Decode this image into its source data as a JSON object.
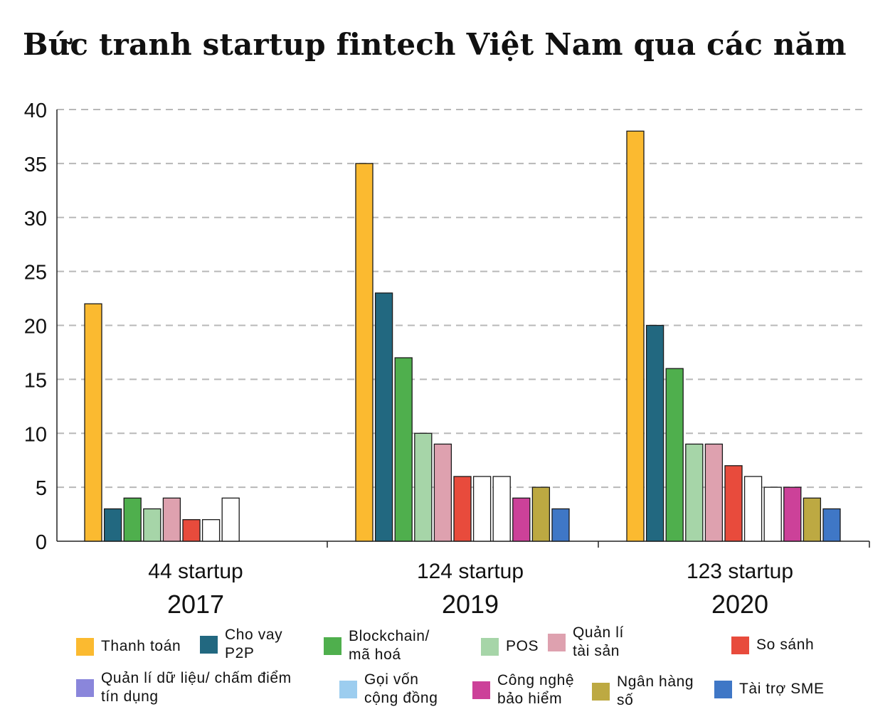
{
  "title": "Bức tranh startup fintech Việt Nam qua các năm",
  "chart_data": {
    "type": "bar",
    "ylim": [
      0,
      40
    ],
    "yticks": [
      "0",
      "5",
      "10",
      "15",
      "20",
      "25",
      "30",
      "35",
      "40"
    ],
    "grid": true,
    "groups": [
      {
        "count_label": "44 startup",
        "year": "2017",
        "values": [
          22,
          3,
          4,
          3,
          4,
          2,
          2,
          4
        ]
      },
      {
        "count_label": "124 startup",
        "year": "2019",
        "values": [
          35,
          23,
          17,
          10,
          9,
          6,
          6,
          6,
          4,
          5,
          3
        ]
      },
      {
        "count_label": "123 startup",
        "year": "2020",
        "values": [
          38,
          20,
          16,
          9,
          9,
          7,
          6,
          5,
          5,
          4,
          3
        ]
      }
    ],
    "bar_colors_2017": [
      "#FBBA30",
      "#226880",
      "#4FAF4D",
      "#A6D5A8",
      "#DEA1AF",
      "#E84B3C",
      "#FFFFFF",
      "#FFFFFF"
    ],
    "bar_colors_2019": [
      "#FBBA30",
      "#226880",
      "#4FAF4D",
      "#A6D5A8",
      "#DEA1AF",
      "#E84B3C",
      "#FFFFFF",
      "#FFFFFF",
      "#CC4199",
      "#BDA942",
      "#3F77C6"
    ],
    "bar_colors_2020": [
      "#FBBA30",
      "#226880",
      "#4FAF4D",
      "#A6D5A8",
      "#DEA1AF",
      "#E84B3C",
      "#FFFFFF",
      "#FFFFFF",
      "#CC4199",
      "#BDA942",
      "#3F77C6"
    ],
    "legend": [
      {
        "label": "Thanh toán",
        "color": "#FBBA30"
      },
      {
        "label": "Cho vay\nP2P",
        "color": "#226880"
      },
      {
        "label": "Blockchain/\nmã hoá",
        "color": "#4FAF4D"
      },
      {
        "label": "POS",
        "color": "#A6D5A8"
      },
      {
        "label": "Quản lí\ntài sản",
        "color": "#DEA1AF"
      },
      {
        "label": "So sánh",
        "color": "#E84B3C"
      },
      {
        "label": "Quản lí dữ liệu/ chấm điểm\ntín dụng",
        "color": "#8A86DB"
      },
      {
        "label": "Gọi vốn\ncộng đồng",
        "color": "#9CCDEF"
      },
      {
        "label": "Công nghệ\nbảo hiểm",
        "color": "#CC4199"
      },
      {
        "label": "Ngân hàng\nsố",
        "color": "#BDA942"
      },
      {
        "label": "Tài trợ SME",
        "color": "#3F77C6"
      }
    ]
  }
}
